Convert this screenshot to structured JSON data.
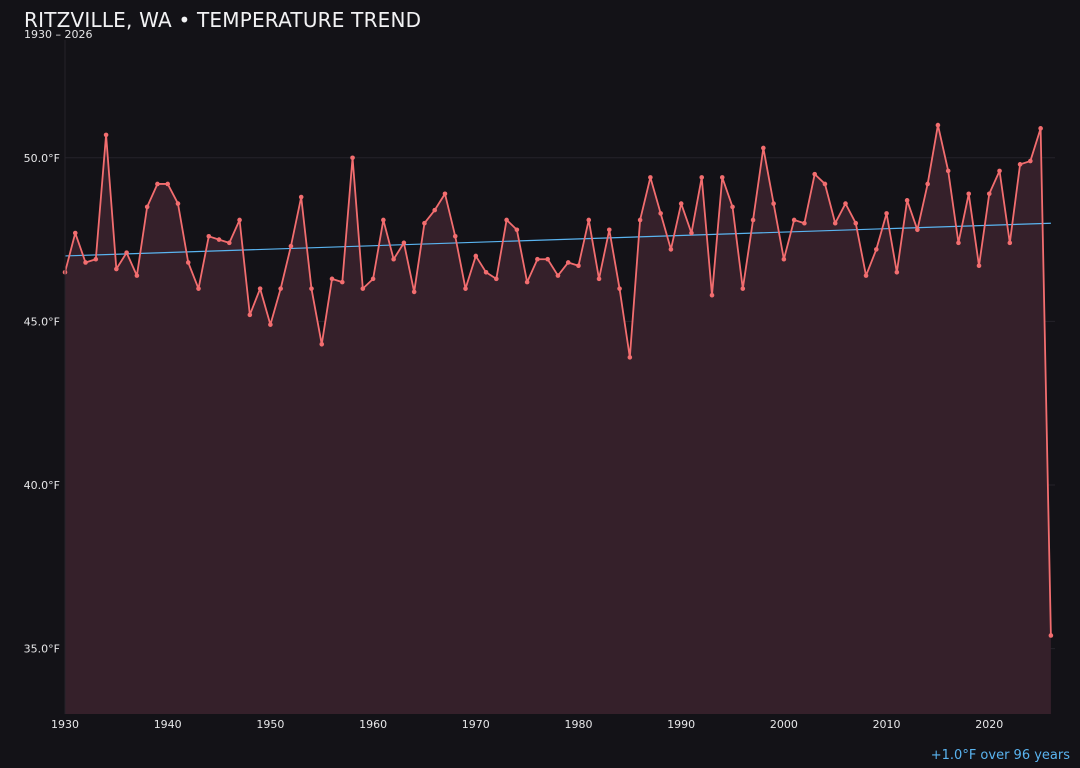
{
  "header": {
    "title": "RITZVILLE, WA • TEMPERATURE TREND",
    "subtitle": "1930 – 2026"
  },
  "annotation": "+1.0°F over 96 years",
  "colors": {
    "background": "#131217",
    "line": "#f26d6f",
    "area_fill": "#35202a",
    "trend": "#5ab4f0",
    "grid": "#25222a",
    "text": "#e6e6e8"
  },
  "chart_data": {
    "type": "line",
    "title": "RITZVILLE, WA • TEMPERATURE TREND",
    "subtitle": "1930 – 2026",
    "xlabel": "",
    "ylabel": "",
    "x_start": 1930,
    "x": [
      1930,
      1931,
      1932,
      1933,
      1934,
      1935,
      1936,
      1937,
      1938,
      1939,
      1940,
      1941,
      1942,
      1943,
      1944,
      1945,
      1946,
      1947,
      1948,
      1949,
      1950,
      1951,
      1952,
      1953,
      1954,
      1955,
      1956,
      1957,
      1958,
      1959,
      1960,
      1961,
      1962,
      1963,
      1964,
      1965,
      1966,
      1967,
      1968,
      1969,
      1970,
      1971,
      1972,
      1973,
      1974,
      1975,
      1976,
      1977,
      1978,
      1979,
      1980,
      1981,
      1982,
      1983,
      1984,
      1985,
      1986,
      1987,
      1988,
      1989,
      1990,
      1991,
      1992,
      1993,
      1994,
      1995,
      1996,
      1997,
      1998,
      1999,
      2000,
      2001,
      2002,
      2003,
      2004,
      2005,
      2006,
      2007,
      2008,
      2009,
      2010,
      2011,
      2012,
      2013,
      2014,
      2015,
      2016,
      2017,
      2018,
      2019,
      2020,
      2021,
      2022,
      2023,
      2024,
      2025,
      2026
    ],
    "xlim": [
      1930,
      2026.4
    ],
    "ylim": [
      33.0,
      53.6
    ],
    "xticks": [
      1930,
      1940,
      1950,
      1960,
      1970,
      1980,
      1990,
      2000,
      2010,
      2020
    ],
    "yticks": [
      35.0,
      40.0,
      45.0,
      50.0
    ],
    "ytick_labels": [
      "35.0°F",
      "40.0°F",
      "45.0°F",
      "50.0°F"
    ],
    "grid": true,
    "area_fill": true,
    "series": [
      {
        "values": [
          46.5,
          47.7,
          46.8,
          46.9,
          50.7,
          46.6,
          47.1,
          46.4,
          48.5,
          49.2,
          49.2,
          48.6,
          46.8,
          46.0,
          47.6,
          47.5,
          47.4,
          48.1,
          45.2,
          46.0,
          44.9,
          46.0,
          47.3,
          48.8,
          46.0,
          44.3,
          46.3,
          46.2,
          50.0,
          46.0,
          46.3,
          48.1,
          46.9,
          47.4,
          45.9,
          48.0,
          48.4,
          48.9,
          47.6,
          46.0,
          47.0,
          46.5,
          46.3,
          48.1,
          47.8,
          46.2,
          46.9,
          46.9,
          46.4,
          46.8,
          46.7,
          48.1,
          46.3,
          47.8,
          46.0,
          43.9,
          48.1,
          49.4,
          48.3,
          47.2,
          48.6,
          47.7,
          49.4,
          45.8,
          49.4,
          48.5,
          46.0,
          48.1,
          50.3,
          48.6,
          46.9,
          48.1,
          48.0,
          49.5,
          49.2,
          48.0,
          48.6,
          48.0,
          46.4,
          47.2,
          48.3,
          46.5,
          48.7,
          47.8,
          49.2,
          51.0,
          49.6,
          47.4,
          48.9,
          46.7,
          48.9,
          49.6,
          47.4,
          49.8,
          49.9,
          50.9,
          35.4
        ]
      }
    ],
    "trend_line": {
      "x": [
        1930,
        2026
      ],
      "values": [
        47.0,
        48.0
      ]
    }
  }
}
